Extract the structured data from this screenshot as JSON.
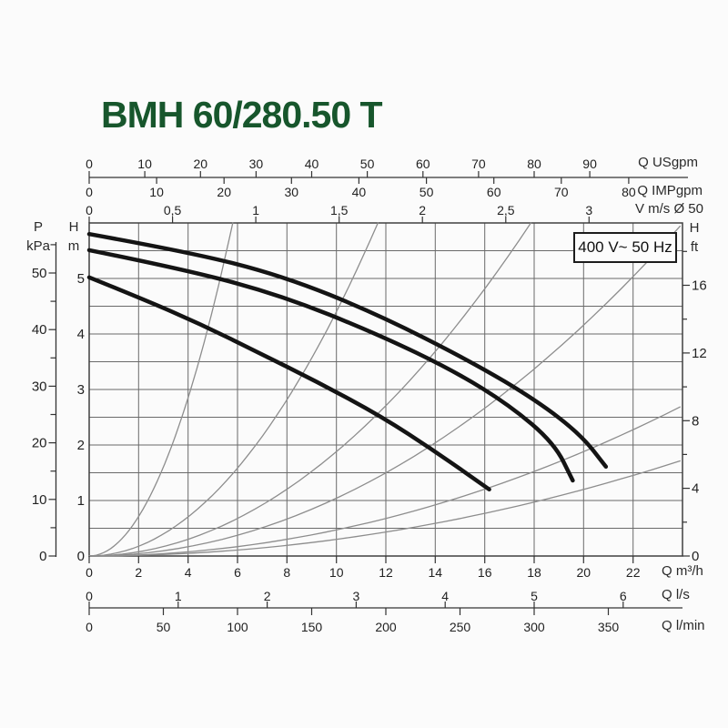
{
  "title": "BMH 60/280.50 T",
  "voltage_badge": "400 V~ 50 Hz",
  "colors": {
    "title_green": "#17562c",
    "pump_curve": "#141414",
    "system_curve": "#8d8d8d",
    "grid": "#6a6a6a",
    "frame": "#3f3f3f",
    "tick_text": "#222222"
  },
  "chart_data": {
    "type": "line",
    "title": "BMH 60/280.50 T",
    "grid": true,
    "xlim_m3h": [
      0,
      24
    ],
    "ylim_m": [
      0,
      6
    ],
    "legend": "none",
    "x_axes_top": [
      {
        "id": "usgpm",
        "caption": "Q USgpm",
        "unit_to_m3h": 0.225,
        "values": [
          0,
          10,
          20,
          30,
          40,
          50,
          60,
          70,
          80,
          90
        ],
        "labels": [
          "0",
          "10",
          "20",
          "30",
          "40",
          "50",
          "60",
          "70",
          "80",
          "90"
        ]
      },
      {
        "id": "impgpm",
        "caption": "Q IMPgpm",
        "unit_to_m3h": 0.2728,
        "values": [
          0,
          10,
          20,
          30,
          40,
          50,
          60,
          70,
          80
        ],
        "labels": [
          "0",
          "10",
          "20",
          "30",
          "40",
          "50",
          "60",
          "70",
          "80"
        ]
      },
      {
        "id": "v_ms",
        "caption": "V m/s Ø 50",
        "unit_to_m3h": 6.74,
        "values": [
          0,
          0.5,
          1,
          1.5,
          2,
          2.5,
          3
        ],
        "labels": [
          "0",
          "0,5",
          "1",
          "1,5",
          "2",
          "2,5",
          "3"
        ]
      }
    ],
    "x_axes_bottom": [
      {
        "id": "m3h",
        "caption": "Q m³/h",
        "unit_to_m3h": 1,
        "values": [
          0,
          2,
          4,
          6,
          8,
          10,
          12,
          14,
          16,
          18,
          20,
          22
        ],
        "labels": [
          "0",
          "2",
          "4",
          "6",
          "8",
          "10",
          "12",
          "14",
          "16",
          "18",
          "20",
          "22"
        ]
      },
      {
        "id": "ls",
        "caption": "Q l/s",
        "unit_to_m3h": 3.6,
        "values": [
          0,
          1,
          2,
          3,
          4,
          5,
          6
        ],
        "labels": [
          "0",
          "1",
          "2",
          "3",
          "4",
          "5",
          "6"
        ]
      },
      {
        "id": "lmin",
        "caption": "Q l/min",
        "unit_to_m3h": 0.06,
        "values": [
          0,
          50,
          100,
          150,
          200,
          250,
          300,
          350
        ],
        "labels": [
          "0",
          "50",
          "100",
          "150",
          "200",
          "250",
          "300",
          "350"
        ]
      }
    ],
    "y_axes": [
      {
        "id": "h_m",
        "caption_line1": "H",
        "caption_line2": "m",
        "unit_to_m": 1,
        "major_values": [
          0,
          1,
          2,
          3,
          4,
          5
        ],
        "major_labels": [
          "0",
          "1",
          "2",
          "3",
          "4",
          "5"
        ],
        "minor_values": []
      },
      {
        "id": "h_ft",
        "caption_line1": "H",
        "caption_line2": "ft",
        "unit_to_m": 0.3048,
        "major_values": [
          0,
          4,
          8,
          12,
          16
        ],
        "major_labels": [
          "0",
          "4",
          "8",
          "12",
          "16"
        ],
        "minor_values": [
          2,
          6,
          10,
          14,
          18
        ]
      },
      {
        "id": "p_kpa",
        "caption_line1": "P",
        "caption_line2": "kPa",
        "unit_to_m": 0.10197,
        "major_values": [
          0,
          10,
          20,
          30,
          40,
          50
        ],
        "major_labels": [
          "0",
          "10",
          "20",
          "30",
          "40",
          "50"
        ],
        "minor_values": [
          5,
          15,
          25,
          35,
          45,
          55
        ]
      }
    ],
    "pump_curves": [
      {
        "name": "pump-curve-high",
        "points": [
          [
            0,
            5.8
          ],
          [
            4,
            5.48
          ],
          [
            7.8,
            5.05
          ],
          [
            11.65,
            4.36
          ],
          [
            15.5,
            3.49
          ],
          [
            18.1,
            2.8
          ],
          [
            19.9,
            2.18
          ],
          [
            20.9,
            1.61
          ]
        ]
      },
      {
        "name": "pump-curve-mid",
        "points": [
          [
            0,
            5.51
          ],
          [
            4,
            5.15
          ],
          [
            7.8,
            4.69
          ],
          [
            11.65,
            4.0
          ],
          [
            14.78,
            3.33
          ],
          [
            16.99,
            2.72
          ],
          [
            18.82,
            2.03
          ],
          [
            19.56,
            1.36
          ]
        ]
      },
      {
        "name": "pump-curve-low",
        "points": [
          [
            0,
            5.02
          ],
          [
            2.28,
            4.61
          ],
          [
            4.49,
            4.18
          ],
          [
            6.69,
            3.7
          ],
          [
            9.26,
            3.13
          ],
          [
            11.84,
            2.51
          ],
          [
            14.04,
            1.87
          ],
          [
            16.18,
            1.2
          ]
        ]
      }
    ],
    "system_curves": [
      {
        "name": "system-curve-1",
        "k": 0.178,
        "q_end": 5.81
      },
      {
        "name": "system-curve-2",
        "k": 0.044,
        "q_end": 11.68
      },
      {
        "name": "system-curve-3",
        "k": 0.0188,
        "q_end": 17.86
      },
      {
        "name": "system-curve-4",
        "k": 0.0104,
        "q_end": 23.9
      },
      {
        "name": "system-curve-5",
        "k": 0.0047,
        "q_end": 23.9
      },
      {
        "name": "system-curve-6",
        "k": 0.003,
        "q_end": 23.9
      }
    ]
  }
}
